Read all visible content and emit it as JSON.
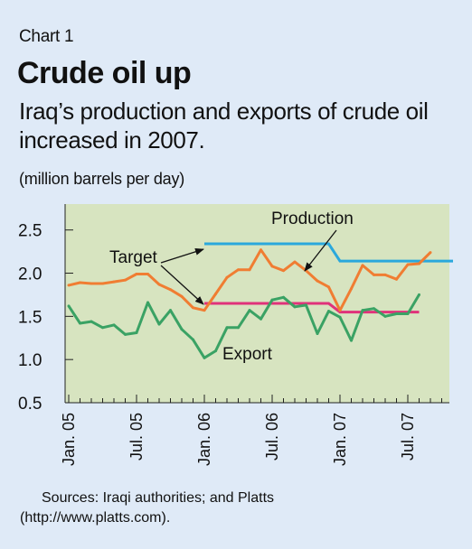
{
  "header": {
    "kicker": "Chart 1",
    "title": "Crude oil up",
    "subtitle": "Iraq’s production and exports of crude oil increased in 2007.",
    "unit": "(million barrels per day)"
  },
  "source": {
    "line1": "Sources: Iraqi authorities; and Platts",
    "line2": "(http://www.platts.com)."
  },
  "colors": {
    "background": "#dfeaf7",
    "plot_area": "#d7e4c0",
    "production": "#f07d32",
    "export": "#3aa264",
    "target_production": "#2aa8dc",
    "target_export": "#e0327a"
  },
  "chart_data": {
    "type": "line",
    "x_tick_labels": [
      "Jan. 05",
      "Jul. 05",
      "Jan. 06",
      "Jul. 06",
      "Jan. 07",
      "Jul. 07"
    ],
    "x_tick_months": [
      0,
      6,
      12,
      18,
      24,
      30
    ],
    "x_range_months": [
      0,
      33
    ],
    "ylim": [
      0.5,
      2.8
    ],
    "y_ticks": [
      0.5,
      1.0,
      1.5,
      2.0,
      2.5
    ],
    "y_tick_labels": [
      "0.5",
      "1.0",
      "1.5",
      "2.0",
      "2.5"
    ],
    "grid": false,
    "series": [
      {
        "key": "production",
        "name": "Production",
        "color": "#f07d32",
        "values": [
          1.86,
          1.89,
          1.88,
          1.88,
          1.9,
          1.92,
          1.99,
          1.99,
          1.87,
          1.81,
          1.73,
          1.6,
          1.57,
          1.76,
          1.95,
          2.04,
          2.04,
          2.27,
          2.08,
          2.03,
          2.13,
          2.03,
          1.91,
          1.84,
          1.57,
          1.82,
          2.09,
          1.98,
          1.98,
          1.93,
          2.1,
          2.11,
          2.24
        ]
      },
      {
        "key": "export",
        "name": "Export",
        "color": "#3aa264",
        "values": [
          1.62,
          1.42,
          1.44,
          1.37,
          1.4,
          1.29,
          1.31,
          1.66,
          1.41,
          1.57,
          1.35,
          1.23,
          1.02,
          1.1,
          1.37,
          1.37,
          1.57,
          1.47,
          1.69,
          1.72,
          1.61,
          1.63,
          1.3,
          1.56,
          1.49,
          1.22,
          1.57,
          1.59,
          1.5,
          1.53,
          1.53,
          1.75
        ]
      }
    ],
    "targets": [
      {
        "key": "target_production",
        "color": "#2aa8dc",
        "points": [
          [
            12,
            2.34
          ],
          [
            23,
            2.34
          ],
          [
            24,
            2.14
          ],
          [
            34,
            2.14
          ]
        ]
      },
      {
        "key": "target_export",
        "color": "#e0327a",
        "points": [
          [
            12,
            1.65
          ],
          [
            23,
            1.65
          ],
          [
            24,
            1.55
          ],
          [
            31,
            1.55
          ]
        ]
      }
    ],
    "annotations": [
      {
        "key": "production",
        "text": "Production"
      },
      {
        "key": "target",
        "text": "Target"
      },
      {
        "key": "export",
        "text": "Export"
      }
    ]
  }
}
